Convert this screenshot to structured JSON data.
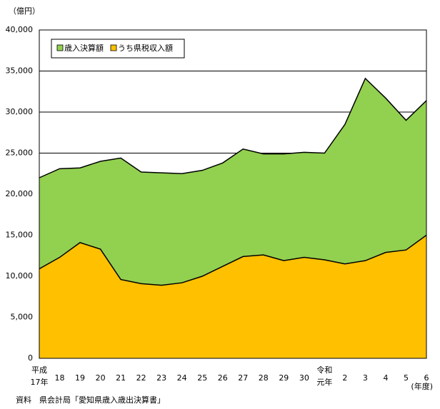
{
  "chart_data": {
    "type": "area",
    "y_unit_label": "（億円）",
    "x_unit_label": "(年度)",
    "source": "資料　県会計局「愛知県歳入歳出決算書」",
    "categories": [
      [
        "平成",
        "17年"
      ],
      "18",
      "19",
      "20",
      "21",
      "22",
      "23",
      "24",
      "25",
      "26",
      "27",
      "28",
      "29",
      "30",
      [
        "令和",
        "元年"
      ],
      "2",
      "3",
      "4",
      "5",
      "6"
    ],
    "series": [
      {
        "name": "歳入決算額",
        "color": "#92d050",
        "values": [
          22000,
          23100,
          23200,
          24000,
          24400,
          22700,
          22600,
          22500,
          22900,
          23800,
          25500,
          24900,
          24900,
          25100,
          25000,
          28500,
          34100,
          31700,
          29000,
          31400
        ]
      },
      {
        "name": "うち県税収入額",
        "color": "#ffc000",
        "values": [
          10900,
          12300,
          14100,
          13300,
          9600,
          9100,
          8900,
          9200,
          10000,
          11200,
          12400,
          12600,
          11900,
          12300,
          12000,
          11500,
          11900,
          12900,
          13200,
          15000
        ]
      }
    ],
    "ylim": [
      0,
      40000
    ],
    "yticks": [
      0,
      {
        "value": 5000,
        "label": "5,000"
      },
      {
        "value": 10000,
        "label": "10,000"
      },
      {
        "value": 15000,
        "label": "15,000"
      },
      {
        "value": 20000,
        "label": "20,000"
      },
      {
        "value": 25000,
        "label": "25,000"
      },
      {
        "value": 30000,
        "label": "30,000"
      },
      {
        "value": 35000,
        "label": "35,000"
      },
      {
        "value": 40000,
        "label": "40,000"
      }
    ],
    "grid": true,
    "legend": "top-left"
  }
}
